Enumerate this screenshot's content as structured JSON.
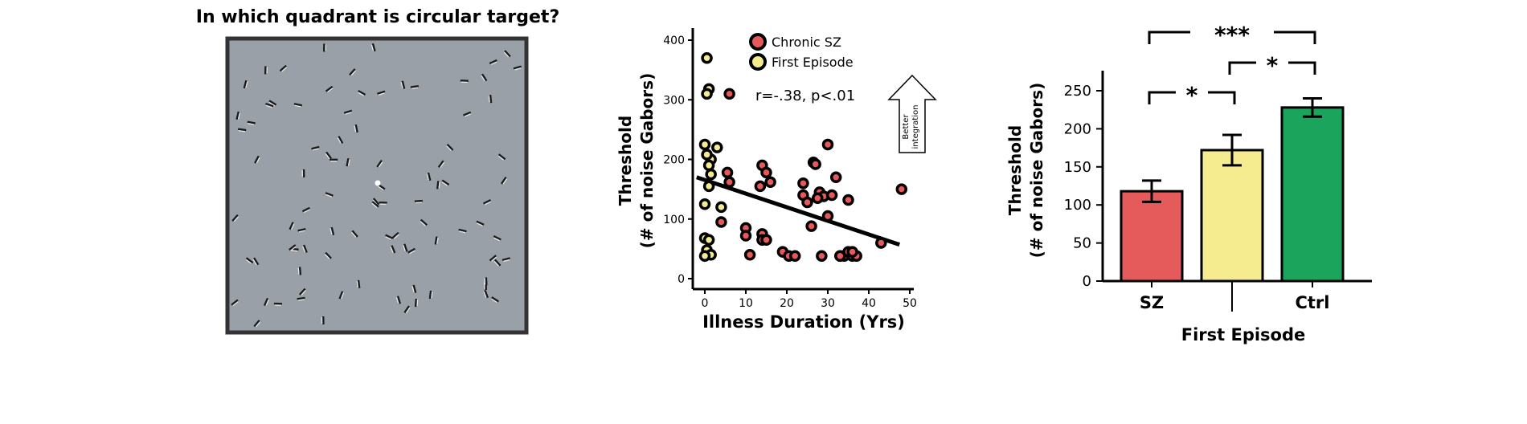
{
  "stimulus": {
    "title": "In which quadrant is circular target?"
  },
  "chart_data": [
    {
      "type": "scatter",
      "title": "",
      "xlabel": "Illness Duration (Yrs)",
      "ylabel_line1": "Threshold",
      "ylabel_line2": "(# of noise Gabors)",
      "xlim": [
        -2,
        52
      ],
      "ylim": [
        -10,
        410
      ],
      "xticks": [
        0,
        10,
        20,
        30,
        40,
        50
      ],
      "yticks": [
        0,
        100,
        200,
        300,
        400
      ],
      "annotation": "r=-.38, p<.01",
      "arrow_label_line1": "Better",
      "arrow_label_line2": "integration",
      "legend": [
        "Chronic SZ",
        "First Episode"
      ],
      "colors": {
        "chronic": "#e8585a",
        "first_episode": "#f4ec8e",
        "ring": "#000000"
      },
      "trendline": {
        "x": [
          -2,
          47.5
        ],
        "y": [
          170,
          57
        ]
      },
      "series": [
        {
          "name": "First Episode",
          "x": [
            0.5,
            1,
            0.5,
            1.5,
            0,
            0.5,
            1,
            1.5,
            3,
            0,
            1,
            0,
            1,
            0.5,
            1.5,
            4,
            0
          ],
          "y": [
            370,
            318,
            310,
            200,
            225,
            208,
            190,
            175,
            220,
            125,
            155,
            68,
            65,
            48,
            40,
            120,
            38
          ]
        },
        {
          "name": "Chronic SZ",
          "x": [
            6,
            5.5,
            6,
            4,
            10,
            10,
            11,
            14,
            15,
            16,
            13.5,
            14,
            14,
            15,
            19,
            20.5,
            22,
            24,
            24,
            25,
            26.5,
            27,
            28,
            29,
            30,
            27.5,
            26,
            28.5,
            30,
            31,
            32,
            33,
            34,
            35,
            36,
            37,
            35,
            36,
            33,
            43,
            48
          ],
          "y": [
            310,
            178,
            162,
            95,
            85,
            72,
            40,
            190,
            178,
            162,
            155,
            75,
            65,
            65,
            45,
            38,
            38,
            160,
            140,
            128,
            195,
            192,
            145,
            138,
            225,
            135,
            88,
            38,
            105,
            140,
            170,
            38,
            38,
            45,
            38,
            38,
            132,
            45,
            38,
            60,
            150
          ]
        }
      ]
    },
    {
      "type": "bar",
      "ylabel_line1": "Threshold",
      "ylabel_line2": "(# of noise Gabors)",
      "xlabel": "First Episode",
      "categories": [
        "SZ",
        "",
        "Ctrl"
      ],
      "values": [
        118,
        172,
        228
      ],
      "errors": [
        14,
        20,
        12
      ],
      "colors": [
        "#e55a5a",
        "#f5ec8f",
        "#1aa45c"
      ],
      "ylim": [
        0,
        275
      ],
      "yticks": [
        0,
        50,
        100,
        150,
        200,
        250
      ],
      "significance": [
        {
          "from": 0,
          "to": 1,
          "label": "*"
        },
        {
          "from": 1,
          "to": 2,
          "label": "*"
        },
        {
          "from": 0,
          "to": 2,
          "label": "***"
        }
      ]
    }
  ]
}
